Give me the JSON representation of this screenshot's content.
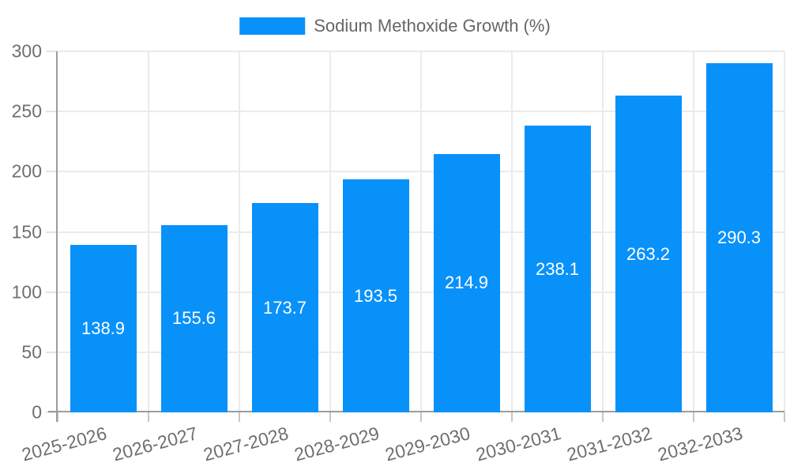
{
  "legend": {
    "label": "Sodium Methoxide Growth (%)",
    "swatch_color": "#0991fa"
  },
  "chart_data": {
    "type": "bar",
    "title": "",
    "categories": [
      "2025-2026",
      "2026-2027",
      "2027-2028",
      "2028-2029",
      "2029-2030",
      "2030-2031",
      "2031-2032",
      "2032-2033"
    ],
    "series": [
      {
        "name": "Sodium Methoxide Growth (%)",
        "values": [
          138.9,
          155.6,
          173.7,
          193.5,
          214.9,
          238.1,
          263.2,
          290.3
        ]
      }
    ],
    "value_labels": [
      "138.9",
      "155.6",
      "173.7",
      "193.5",
      "214.9",
      "238.1",
      "263.2",
      "290.3"
    ],
    "ylim": [
      0,
      300
    ],
    "yticks": [
      0,
      50,
      100,
      150,
      200,
      250,
      300
    ],
    "grid": true,
    "legend_position": "top-center",
    "x_label_rotation_deg": -15,
    "colors": {
      "bar": "#0991fa",
      "value_label": "#ffffff",
      "grid": "#ebebeb",
      "axis_spine": "#9c9c9c",
      "tick_label": "#6f6f6f",
      "legend_text": "#666666",
      "background": "#ffffff"
    }
  }
}
